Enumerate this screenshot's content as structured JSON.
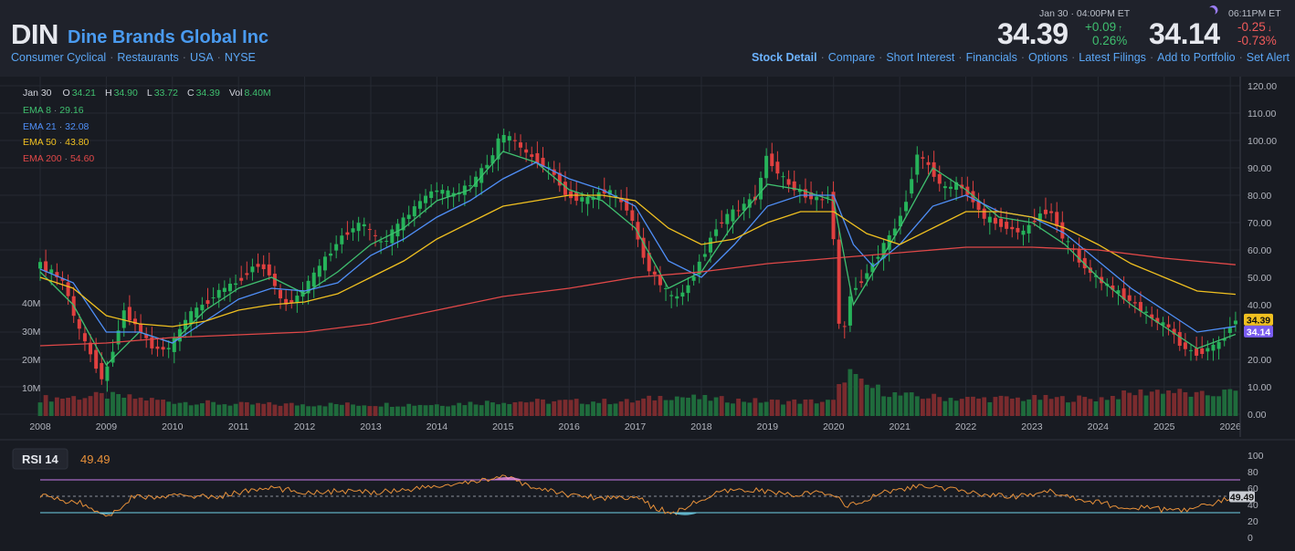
{
  "header": {
    "ticker": "DIN",
    "company": "Dine Brands Global Inc",
    "tags": [
      "Consumer Cyclical",
      "Restaurants",
      "USA",
      "NYSE"
    ],
    "nav": [
      "Stock Detail",
      "Compare",
      "Short Interest",
      "Financials",
      "Options",
      "Latest Filings",
      "Add to Portfolio",
      "Set Alert"
    ],
    "quote_close": {
      "time": "Jan 30 · 04:00PM ET",
      "price": "34.39",
      "change": "+0.09",
      "change_pct": "0.26",
      "arrow": "↑"
    },
    "quote_after": {
      "time": "06:11PM ET",
      "price": "34.14",
      "change": "-0.25",
      "change_pct": "-0.73",
      "arrow": "↓"
    },
    "colors": {
      "up": "#3fbf6f",
      "down": "#f05a5a",
      "accent": "#4a9bf0"
    }
  },
  "legend": {
    "date": "Jan 30",
    "ohlc": [
      {
        "k": "O",
        "v": "34.21"
      },
      {
        "k": "H",
        "v": "34.90"
      },
      {
        "k": "L",
        "v": "33.72"
      },
      {
        "k": "C",
        "v": "34.39"
      },
      {
        "k": "Vol",
        "v": "8.40M"
      }
    ],
    "ema": [
      {
        "label": "EMA 8",
        "value": "29.16",
        "color": "#3fbf6f"
      },
      {
        "label": "EMA 21",
        "value": "32.08",
        "color": "#4f8ff7"
      },
      {
        "label": "EMA 50",
        "value": "43.80",
        "color": "#f0c020"
      },
      {
        "label": "EMA 200",
        "value": "54.60",
        "color": "#e04848"
      }
    ]
  },
  "chart_data": [
    {
      "type": "candlestick",
      "ylim": [
        0,
        120
      ],
      "yticks": [
        "0.00",
        "10.00",
        "20.00",
        "30.00",
        "40.00",
        "50.00",
        "60.00",
        "70.00",
        "80.00",
        "90.00",
        "100.00",
        "110.00",
        "120.00"
      ],
      "xticks": [
        "2008",
        "2009",
        "2010",
        "2011",
        "2012",
        "2013",
        "2014",
        "2015",
        "2016",
        "2017",
        "2018",
        "2019",
        "2020",
        "2021",
        "2022",
        "2023",
        "2024",
        "2025",
        "2026"
      ],
      "volume_ticks": [
        "10M",
        "20M",
        "30M",
        "40M"
      ],
      "last_price_label": "34.39",
      "after_hours_label": "34.14",
      "close_series": {
        "x": [
          2008.0,
          2008.2,
          2008.4,
          2008.6,
          2008.8,
          2009.0,
          2009.15,
          2009.3,
          2009.5,
          2009.75,
          2010.0,
          2010.25,
          2010.5,
          2010.75,
          2011.0,
          2011.3,
          2011.5,
          2011.7,
          2011.9,
          2012.1,
          2012.3,
          2012.6,
          2012.9,
          2013.2,
          2013.5,
          2013.8,
          2014.0,
          2014.3,
          2014.6,
          2014.9,
          2015.0,
          2015.2,
          2015.4,
          2015.6,
          2015.8,
          2016.0,
          2016.3,
          2016.6,
          2016.9,
          2017.0,
          2017.2,
          2017.4,
          2017.6,
          2017.8,
          2018.0,
          2018.3,
          2018.6,
          2018.9,
          2019.0,
          2019.3,
          2019.6,
          2019.9,
          2020.0,
          2020.1,
          2020.2,
          2020.3,
          2020.5,
          2020.7,
          2020.9,
          2021.1,
          2021.3,
          2021.5,
          2021.7,
          2021.9,
          2022.1,
          2022.3,
          2022.5,
          2022.7,
          2022.9,
          2023.1,
          2023.3,
          2023.5,
          2023.7,
          2023.9,
          2024.1,
          2024.3,
          2024.5,
          2024.7,
          2024.9,
          2025.1,
          2025.3,
          2025.5,
          2025.7,
          2025.9,
          2026.08
        ],
        "y": [
          55,
          52,
          48,
          32,
          22,
          12,
          25,
          38,
          32,
          24,
          24,
          35,
          40,
          45,
          48,
          55,
          52,
          40,
          42,
          48,
          55,
          65,
          70,
          62,
          70,
          78,
          82,
          80,
          85,
          95,
          102,
          100,
          95,
          92,
          88,
          80,
          78,
          82,
          76,
          70,
          55,
          48,
          42,
          45,
          55,
          70,
          75,
          80,
          95,
          85,
          80,
          78,
          82,
          35,
          30,
          45,
          50,
          58,
          65,
          75,
          95,
          90,
          82,
          84,
          80,
          72,
          70,
          68,
          66,
          72,
          75,
          65,
          58,
          52,
          48,
          45,
          42,
          38,
          34,
          32,
          25,
          22,
          24,
          26,
          34.39
        ]
      },
      "ema": [
        {
          "name": "EMA 8",
          "color": "#3fbf6f",
          "x": [
            2008.0,
            2008.5,
            2009.0,
            2009.5,
            2010.0,
            2010.5,
            2011.0,
            2011.5,
            2012.0,
            2012.5,
            2013.0,
            2013.5,
            2014.0,
            2014.5,
            2015.0,
            2015.5,
            2016.0,
            2016.5,
            2017.0,
            2017.5,
            2018.0,
            2018.5,
            2019.0,
            2019.5,
            2020.0,
            2020.3,
            2020.6,
            2021.0,
            2021.5,
            2022.0,
            2022.5,
            2023.0,
            2023.5,
            2024.0,
            2024.5,
            2025.0,
            2025.5,
            2026.08
          ],
          "y": [
            52,
            40,
            18,
            30,
            26,
            38,
            46,
            50,
            44,
            52,
            62,
            68,
            78,
            82,
            96,
            92,
            82,
            78,
            68,
            46,
            52,
            70,
            84,
            82,
            78,
            40,
            52,
            68,
            90,
            82,
            72,
            70,
            62,
            50,
            40,
            32,
            24,
            29.16
          ]
        },
        {
          "name": "EMA 21",
          "color": "#4f8ff7",
          "x": [
            2008.0,
            2008.5,
            2009.0,
            2009.5,
            2010.0,
            2010.5,
            2011.0,
            2011.5,
            2012.0,
            2012.5,
            2013.0,
            2013.5,
            2014.0,
            2014.5,
            2015.0,
            2015.5,
            2016.0,
            2016.5,
            2017.0,
            2017.5,
            2018.0,
            2018.5,
            2019.0,
            2019.5,
            2020.0,
            2020.3,
            2020.6,
            2021.0,
            2021.5,
            2022.0,
            2022.5,
            2023.0,
            2023.5,
            2024.0,
            2024.5,
            2025.0,
            2025.5,
            2026.08
          ],
          "y": [
            53,
            48,
            30,
            30,
            26,
            34,
            42,
            46,
            45,
            48,
            58,
            64,
            72,
            78,
            86,
            92,
            86,
            82,
            76,
            56,
            50,
            62,
            76,
            80,
            80,
            62,
            54,
            62,
            76,
            80,
            74,
            72,
            66,
            56,
            46,
            38,
            30,
            32.08
          ]
        },
        {
          "name": "EMA 50",
          "color": "#f0c020",
          "x": [
            2008.0,
            2008.5,
            2009.0,
            2009.5,
            2010.0,
            2010.5,
            2011.0,
            2011.5,
            2012.0,
            2012.5,
            2013.0,
            2013.5,
            2014.0,
            2014.5,
            2015.0,
            2015.5,
            2016.0,
            2016.5,
            2017.0,
            2017.5,
            2018.0,
            2018.5,
            2019.0,
            2019.5,
            2020.0,
            2020.5,
            2021.0,
            2021.5,
            2022.0,
            2022.5,
            2023.0,
            2023.5,
            2024.0,
            2024.5,
            2025.0,
            2025.5,
            2026.08
          ],
          "y": [
            50,
            46,
            36,
            33,
            32,
            34,
            38,
            40,
            41,
            44,
            50,
            56,
            64,
            70,
            76,
            78,
            80,
            80,
            78,
            68,
            62,
            64,
            70,
            74,
            74,
            66,
            62,
            68,
            74,
            74,
            72,
            68,
            62,
            55,
            50,
            45,
            43.8
          ]
        },
        {
          "name": "EMA 200",
          "color": "#e04848",
          "x": [
            2008.0,
            2009.0,
            2010.0,
            2011.0,
            2012.0,
            2013.0,
            2014.0,
            2015.0,
            2016.0,
            2017.0,
            2018.0,
            2019.0,
            2020.0,
            2021.0,
            2022.0,
            2023.0,
            2024.0,
            2025.0,
            2026.08
          ],
          "y": [
            25,
            26,
            28,
            29,
            30,
            33,
            38,
            43,
            46,
            50,
            52,
            55,
            57,
            59,
            61,
            61,
            60,
            57,
            54.6
          ]
        }
      ],
      "volume": {
        "x": [
          2008.0,
          2009.0,
          2010.0,
          2011.0,
          2012.0,
          2013.0,
          2014.0,
          2015.0,
          2016.0,
          2017.0,
          2017.5,
          2018.0,
          2019.0,
          2020.0,
          2020.2,
          2020.4,
          2021.0,
          2022.0,
          2023.0,
          2024.0,
          2024.6,
          2025.0,
          2025.5,
          2026.08
        ],
        "y": [
          6,
          7,
          5,
          4,
          4,
          4,
          4,
          5,
          5,
          5,
          7,
          6,
          5,
          5,
          16,
          11,
          7,
          6,
          6,
          6,
          8,
          9,
          7,
          8.4
        ]
      }
    },
    {
      "type": "line",
      "title": "RSI 14",
      "value_label": "49.49",
      "ylim": [
        0,
        100
      ],
      "yticks": [
        "0",
        "20",
        "40",
        "60",
        "80",
        "100"
      ],
      "upper_band": 70,
      "lower_band": 30,
      "last_value": 49.49,
      "x": [
        2008.0,
        2008.3,
        2008.6,
        2008.9,
        2009.1,
        2009.4,
        2009.8,
        2010.2,
        2010.6,
        2011.0,
        2011.5,
        2012.0,
        2012.5,
        2013.0,
        2013.5,
        2014.0,
        2014.5,
        2014.8,
        2015.0,
        2015.2,
        2015.5,
        2016.0,
        2016.5,
        2017.0,
        2017.3,
        2017.6,
        2017.9,
        2018.3,
        2018.8,
        2019.3,
        2019.8,
        2020.1,
        2020.2,
        2020.4,
        2020.8,
        2021.3,
        2021.8,
        2022.3,
        2022.8,
        2023.3,
        2023.8,
        2024.3,
        2024.8,
        2025.2,
        2025.6,
        2025.9,
        2026.08
      ],
      "y": [
        52,
        45,
        42,
        30,
        28,
        50,
        48,
        52,
        48,
        55,
        60,
        55,
        56,
        55,
        58,
        62,
        66,
        72,
        74,
        68,
        60,
        52,
        48,
        50,
        35,
        30,
        42,
        55,
        58,
        52,
        54,
        48,
        38,
        42,
        56,
        62,
        58,
        52,
        50,
        56,
        45,
        38,
        35,
        32,
        38,
        46,
        49.49
      ]
    }
  ]
}
